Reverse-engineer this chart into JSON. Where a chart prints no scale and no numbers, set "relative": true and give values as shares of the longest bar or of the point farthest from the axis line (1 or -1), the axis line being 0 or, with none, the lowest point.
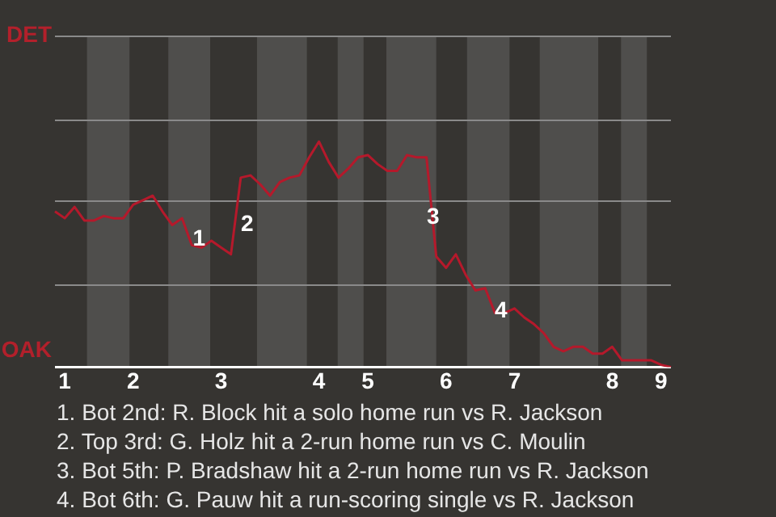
{
  "chart_data": {
    "type": "line",
    "relative": true,
    "categories": [
      null,
      "1",
      null,
      null,
      null,
      null,
      null,
      null,
      "2",
      null,
      null,
      null,
      null,
      null,
      null,
      null,
      null,
      "3",
      null,
      null,
      null,
      null,
      null,
      null,
      null,
      null,
      null,
      "4",
      null,
      null,
      null,
      null,
      "5",
      null,
      null,
      null,
      null,
      null,
      null,
      null,
      "6",
      null,
      null,
      null,
      null,
      null,
      null,
      "7",
      null,
      null,
      null,
      null,
      null,
      null,
      null,
      null,
      null,
      "8",
      null,
      null,
      null,
      null,
      "9",
      null
    ],
    "legend": false,
    "marker": "none",
    "line_style": "solid",
    "series": [
      {
        "color": "#b5192b",
        "values": [
          0.69,
          0.66,
          0.71,
          0.65,
          0.65,
          0.67,
          0.66,
          0.66,
          0.72,
          0.74,
          0.76,
          0.69,
          0.63,
          0.66,
          0.54,
          0.53,
          0.56,
          0.53,
          0.5,
          0.84,
          0.85,
          0.81,
          0.76,
          0.82,
          0.84,
          0.85,
          0.93,
          1,
          0.91,
          0.84,
          0.88,
          0.93,
          0.94,
          0.9,
          0.87,
          0.87,
          0.94,
          0.93,
          0.93,
          0.49,
          0.44,
          0.5,
          0.41,
          0.34,
          0.35,
          0.24,
          0.24,
          0.26,
          0.22,
          0.19,
          0.15,
          0.09,
          0.07,
          0.09,
          0.09,
          0.06,
          0.06,
          0.09,
          0.03,
          0.03,
          0.03,
          0.03,
          0.01,
          0
        ]
      }
    ],
    "ref_lines": [
      {
        "axis": "y",
        "value": 0.37,
        "color": "#8a8a8a"
      },
      {
        "axis": "y",
        "value": 0.74,
        "color": "#8a8a8a"
      },
      {
        "axis": "y",
        "value": 1.1,
        "color": "#8a8a8a"
      },
      {
        "axis": "y",
        "value": 1.47,
        "color": "#8a8a8a"
      }
    ],
    "annotations": [
      "DET",
      "OAK",
      "1",
      "2",
      "3",
      "4",
      "1. Bot 2nd: R. Block hit a solo home run vs R. Jackson",
      "2. Top 3rd: G. Holz hit a 2-run home run vs C. Moulin",
      "3. Bot 5th: P. Bradshaw hit a 2-run home run vs R. Jackson",
      "4. Bot 6th: G. Pauw hit a run-scoring single vs R. Jackson"
    ]
  }
}
